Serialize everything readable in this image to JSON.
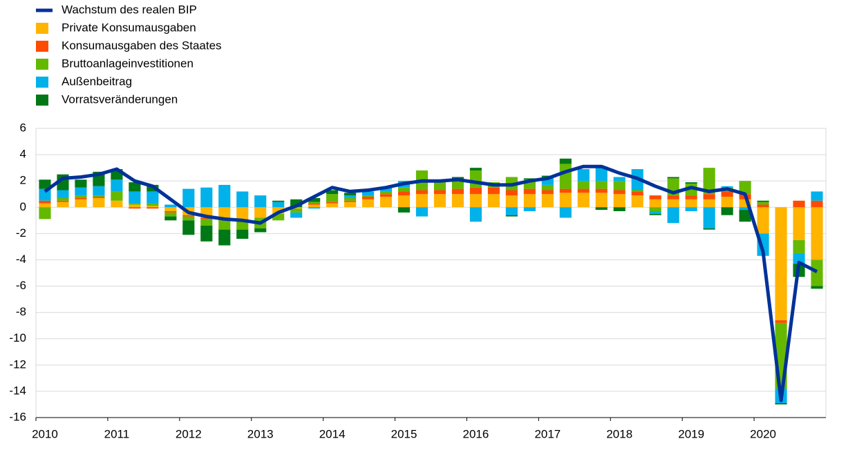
{
  "chart_data": {
    "type": "bar",
    "stacked": true,
    "grid": true,
    "legend": "top-left",
    "categories": [
      "2010",
      null,
      null,
      null,
      "2011",
      null,
      null,
      null,
      "2012",
      null,
      null,
      null,
      "2013",
      null,
      null,
      null,
      "2014",
      null,
      null,
      null,
      "2015",
      null,
      null,
      null,
      "2016",
      null,
      null,
      null,
      "2017",
      null,
      null,
      null,
      "2018",
      null,
      null,
      null,
      "2019",
      null,
      null,
      null,
      "2020",
      null,
      null,
      null
    ],
    "ylim": [
      -16,
      6
    ],
    "yticks": [
      -16,
      -14,
      -12,
      -10,
      -8,
      -6,
      -4,
      -2,
      0,
      2,
      4,
      6
    ],
    "series": [
      {
        "name": "Wachstum des realen BIP",
        "type": "line",
        "color": "#003299",
        "values": [
          1.2,
          2.2,
          2.3,
          2.5,
          2.9,
          2.0,
          1.6,
          0.6,
          -0.4,
          -0.7,
          -0.9,
          -1.0,
          -1.2,
          -0.4,
          0.1,
          0.8,
          1.5,
          1.2,
          1.3,
          1.5,
          1.8,
          2.0,
          2.0,
          2.1,
          1.9,
          1.7,
          1.7,
          2.0,
          2.2,
          2.7,
          3.1,
          3.1,
          2.6,
          2.2,
          1.6,
          1.1,
          1.5,
          1.2,
          1.4,
          1.0,
          -3.4,
          -14.7,
          -4.2,
          -4.9
        ]
      },
      {
        "name": "Private Konsumausgaben",
        "type": "bar",
        "color": "#ffb400",
        "values": [
          0.3,
          0.4,
          0.6,
          0.7,
          0.5,
          0.2,
          0.1,
          -0.3,
          -0.6,
          -0.8,
          -0.9,
          -0.9,
          -0.8,
          -0.5,
          -0.1,
          0.2,
          0.3,
          0.4,
          0.6,
          0.8,
          0.9,
          1.0,
          1.0,
          1.0,
          1.0,
          1.0,
          0.9,
          1.0,
          1.0,
          1.1,
          1.1,
          1.1,
          1.0,
          0.9,
          0.6,
          0.6,
          0.6,
          0.6,
          0.8,
          0.6,
          -2.0,
          -8.6,
          -2.5,
          -4.0
        ]
      },
      {
        "name": "Konsumausgaben des Staates",
        "type": "bar",
        "color": "#ff4b00",
        "values": [
          0.2,
          0.1,
          0.1,
          0.1,
          0.0,
          -0.1,
          -0.1,
          -0.1,
          -0.1,
          -0.1,
          -0.1,
          -0.1,
          0.0,
          0.0,
          0.0,
          0.1,
          0.1,
          0.1,
          0.2,
          0.2,
          0.3,
          0.3,
          0.3,
          0.4,
          0.5,
          0.5,
          0.4,
          0.4,
          0.3,
          0.3,
          0.3,
          0.3,
          0.3,
          0.3,
          0.3,
          0.3,
          0.3,
          0.4,
          0.4,
          0.4,
          0.2,
          -0.2,
          0.5,
          0.5
        ]
      },
      {
        "name": "Bruttoanlageinvestitionen",
        "type": "bar",
        "color": "#65b800",
        "values": [
          -0.9,
          0.2,
          0.2,
          0.1,
          0.7,
          0.1,
          0.2,
          -0.3,
          -0.3,
          -0.5,
          -0.7,
          -0.7,
          -0.8,
          -0.5,
          -0.3,
          0.1,
          0.6,
          0.2,
          0.1,
          0.2,
          0.3,
          1.5,
          0.6,
          0.6,
          1.3,
          0.4,
          1.0,
          0.7,
          0.4,
          1.9,
          0.6,
          0.6,
          0.7,
          0.1,
          -0.3,
          1.3,
          0.9,
          2.0,
          0.3,
          1.0,
          0.2,
          -5.0,
          -1.0,
          -2.0
        ]
      },
      {
        "name": "Außenbeitrag",
        "type": "bar",
        "color": "#00b1ea",
        "values": [
          0.9,
          0.6,
          0.6,
          0.7,
          0.9,
          0.9,
          0.9,
          0.2,
          1.4,
          1.5,
          1.7,
          1.2,
          0.9,
          0.4,
          -0.4,
          -0.1,
          0.0,
          0.2,
          0.3,
          0.3,
          0.5,
          -0.7,
          0.0,
          0.0,
          -1.1,
          0.0,
          -0.6,
          -0.3,
          0.6,
          -0.8,
          0.9,
          1.1,
          0.3,
          1.6,
          -0.2,
          -1.2,
          -0.3,
          -1.6,
          0.1,
          -0.2,
          -1.7,
          -1.1,
          -0.8,
          0.7
        ]
      },
      {
        "name": "Vorratsveränderungen",
        "type": "bar",
        "color": "#007816",
        "values": [
          0.7,
          1.2,
          0.6,
          1.1,
          0.8,
          0.7,
          0.5,
          -0.3,
          -1.1,
          -1.2,
          -1.2,
          -0.7,
          -0.3,
          0.1,
          0.6,
          0.3,
          0.3,
          0.2,
          0.0,
          0.0,
          -0.4,
          0.0,
          0.0,
          0.3,
          0.2,
          0.0,
          -0.1,
          0.1,
          0.1,
          0.4,
          0.0,
          -0.2,
          -0.3,
          0.0,
          -0.1,
          0.1,
          0.1,
          -0.1,
          -0.6,
          -0.9,
          0.1,
          -0.1,
          -1.0,
          -0.2
        ]
      }
    ]
  }
}
